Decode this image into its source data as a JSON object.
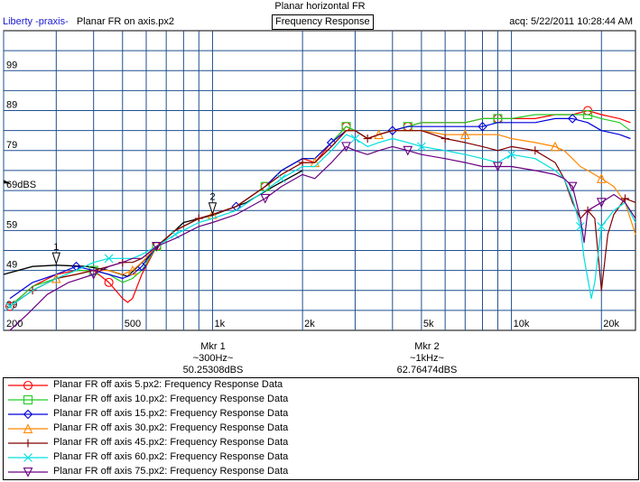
{
  "header": {
    "title": "Planar horizontal FR",
    "app_name": "Liberty -praxis-",
    "document": "Planar FR on axis.px2",
    "chart_title": "Frequency Response",
    "acquired": "acq: 5/22/2011 10:28:44 AM"
  },
  "markers": [
    {
      "label": "Mkr 1",
      "freq": "~300Hz~",
      "value": "50.25308dBS",
      "tag": "1"
    },
    {
      "label": "Mkr 2",
      "freq": "~1kHz~",
      "value": "62.76474dBS",
      "tag": "2"
    }
  ],
  "chart_data": {
    "type": "line",
    "title": "Frequency Response",
    "x_scale": "log",
    "xlim": [
      200,
      26000
    ],
    "ylim": [
      34,
      109
    ],
    "y_ticks": [
      39,
      49,
      59,
      69,
      79,
      89,
      99
    ],
    "y_tick_labels": [
      "39",
      "49",
      "59",
      "69dBS",
      "79",
      "89",
      "99"
    ],
    "x_ticks": [
      200,
      500,
      1000,
      2000,
      5000,
      10000,
      20000
    ],
    "x_tick_labels": [
      "200",
      "500",
      "1k",
      "2k",
      "5k",
      "10k",
      "20k"
    ],
    "grid": true,
    "markers": [
      {
        "tag": "1",
        "freq": 300,
        "level": 50.25
      },
      {
        "tag": "2",
        "freq": 1000,
        "level": 62.76
      }
    ],
    "reference_line": {
      "color": "#000000",
      "x": [
        200,
        250,
        300,
        380,
        450,
        520,
        600,
        700,
        800,
        1000,
        1300,
        1600,
        2000
      ],
      "y": [
        48,
        50,
        50.3,
        50,
        49,
        47.5,
        52,
        57,
        61,
        62.8,
        66,
        70,
        74
      ]
    },
    "series": [
      {
        "name": "Planar FR off axis 5.px2:  Frequency Response Data",
        "color": "#ff0000",
        "marker": "circle",
        "x": [
          210,
          250,
          300,
          350,
          400,
          450,
          500,
          520,
          540,
          580,
          650,
          750,
          900,
          1000,
          1200,
          1500,
          1700,
          2000,
          2200,
          2500,
          2800,
          3000,
          3300,
          3600,
          4000,
          4500,
          5000,
          6000,
          7000,
          8000,
          9000,
          10000,
          12000,
          14000,
          16000,
          18000,
          20000,
          23000,
          25000
        ],
        "y": [
          40,
          45,
          48,
          49,
          49,
          46,
          42,
          41,
          42,
          48,
          55,
          59,
          62,
          63,
          65,
          70,
          74,
          77,
          76,
          81,
          85,
          84,
          82,
          83,
          84,
          85,
          86,
          86,
          86,
          87,
          87,
          87,
          87,
          88,
          88,
          89,
          88,
          87,
          86
        ]
      },
      {
        "name": "Planar FR off axis 10.px2:  Frequency Response Data",
        "color": "#22cc22",
        "marker": "square",
        "x": [
          210,
          250,
          300,
          350,
          400,
          450,
          500,
          540,
          580,
          650,
          750,
          900,
          1000,
          1200,
          1500,
          1700,
          2000,
          2200,
          2500,
          2800,
          3000,
          3300,
          3600,
          4000,
          4500,
          5000,
          6000,
          7000,
          8000,
          9000,
          10000,
          12000,
          14000,
          16000,
          18000,
          20000,
          23000,
          25000
        ],
        "y": [
          40,
          45,
          47,
          49,
          49,
          48,
          46,
          47,
          49,
          55,
          59,
          62,
          63,
          65,
          70,
          74,
          77,
          77,
          81,
          85,
          84,
          82,
          83,
          84,
          85,
          86,
          86,
          86,
          87,
          87,
          87,
          88,
          88,
          88,
          88,
          87,
          86,
          84
        ]
      },
      {
        "name": "Planar FR off axis 15.px2:  Frequency Response Data",
        "color": "#0000dd",
        "marker": "diamond",
        "x": [
          210,
          250,
          300,
          350,
          400,
          450,
          500,
          540,
          580,
          650,
          750,
          900,
          1000,
          1200,
          1500,
          1700,
          2000,
          2200,
          2500,
          2800,
          3000,
          3300,
          3600,
          4000,
          4500,
          5000,
          6000,
          7000,
          8000,
          9000,
          10000,
          12000,
          14000,
          16000,
          18000,
          20000,
          23000,
          25000
        ],
        "y": [
          42,
          46,
          48,
          50,
          49,
          48,
          47,
          48,
          50,
          55,
          59,
          62,
          63,
          65,
          70,
          74,
          77,
          77,
          81,
          84,
          84,
          82,
          83,
          84,
          85,
          85,
          85,
          85,
          85,
          86,
          86,
          86,
          87,
          87,
          86,
          84,
          83,
          82
        ]
      },
      {
        "name": "Planar FR off axis 30.px2:  Frequency Response Data",
        "color": "#ff8800",
        "marker": "triangle",
        "x": [
          210,
          250,
          300,
          350,
          400,
          450,
          500,
          540,
          580,
          650,
          750,
          900,
          1000,
          1200,
          1500,
          1700,
          2000,
          2200,
          2500,
          2800,
          3000,
          3300,
          3600,
          4000,
          4500,
          5000,
          6000,
          7000,
          8000,
          9000,
          10000,
          12000,
          14000,
          15000,
          16000,
          17000,
          18000,
          20000,
          22000,
          24000,
          26000
        ],
        "y": [
          40,
          44,
          47,
          48,
          49,
          49,
          48,
          49,
          51,
          55,
          59,
          62,
          63,
          65,
          70,
          73,
          76,
          76,
          80,
          84,
          84,
          82,
          83,
          84,
          84,
          84,
          83,
          83,
          83,
          83,
          82,
          81,
          80,
          79,
          77,
          75,
          74,
          72,
          70,
          66,
          58
        ]
      },
      {
        "name": "Planar FR off axis 45.px2:  Frequency Response Data",
        "color": "#800000",
        "marker": "plus",
        "x": [
          210,
          250,
          300,
          350,
          400,
          450,
          500,
          540,
          580,
          650,
          750,
          900,
          1000,
          1200,
          1500,
          1700,
          2000,
          2200,
          2500,
          2800,
          3000,
          3300,
          3600,
          4000,
          4500,
          5000,
          6000,
          7000,
          8000,
          9000,
          10000,
          12000,
          14000,
          15000,
          16000,
          17000,
          18000,
          19000,
          20000,
          21000,
          22000,
          24000,
          26000
        ],
        "y": [
          40,
          44,
          47,
          48,
          49,
          50,
          51,
          51,
          52,
          55,
          59,
          62,
          63,
          65,
          70,
          73,
          76,
          76,
          80,
          84,
          84,
          82,
          83,
          84,
          84,
          84,
          82,
          81,
          80,
          79,
          80,
          79,
          76,
          72,
          66,
          62,
          64,
          62,
          44,
          58,
          63,
          67,
          66
        ]
      },
      {
        "name": "Planar FR off axis 60.px2:  Frequency Response Data",
        "color": "#00e0e0",
        "marker": "x",
        "x": [
          210,
          250,
          300,
          350,
          400,
          450,
          500,
          540,
          580,
          650,
          750,
          900,
          1000,
          1200,
          1500,
          1700,
          2000,
          2200,
          2500,
          2800,
          3000,
          3300,
          3600,
          4000,
          4500,
          5000,
          6000,
          7000,
          8000,
          9000,
          10000,
          12000,
          14000,
          15000,
          16000,
          17000,
          17500,
          18000,
          18500,
          19000,
          20000,
          22000,
          24000,
          26000
        ],
        "y": [
          40,
          44,
          47,
          49,
          51,
          52,
          52,
          52,
          53,
          55,
          58,
          61,
          62,
          64,
          69,
          72,
          75,
          75,
          79,
          83,
          82,
          80,
          81,
          82,
          81,
          80,
          79,
          78,
          77,
          76,
          78,
          77,
          74,
          72,
          67,
          60,
          52,
          47,
          42,
          46,
          60,
          64,
          66,
          61
        ]
      },
      {
        "name": "Planar FR off axis 75.px2:  Frequency Response Data",
        "color": "#6a0080",
        "marker": "triangle-down",
        "x": [
          210,
          240,
          280,
          330,
          400,
          450,
          500,
          540,
          580,
          650,
          750,
          900,
          1000,
          1200,
          1500,
          1700,
          2000,
          2200,
          2500,
          2800,
          3000,
          3300,
          3600,
          4000,
          4500,
          5000,
          6000,
          7000,
          8000,
          9000,
          10000,
          12000,
          14000,
          15000,
          16000,
          16500,
          17000,
          17500,
          18000,
          20000,
          22000,
          24000,
          26000
        ],
        "y": [
          34,
          38,
          43,
          46,
          48,
          50,
          51,
          52,
          52,
          55,
          57,
          60,
          61,
          63,
          67,
          70,
          73,
          72,
          76,
          80,
          79,
          78,
          79,
          80,
          79,
          78,
          77,
          76,
          75,
          75,
          75,
          74,
          73,
          72,
          70,
          66,
          62,
          56,
          64,
          66,
          68,
          66,
          62
        ]
      }
    ]
  },
  "colors": {
    "grid": "#1f4f8f",
    "plot_background": "#ffffff"
  }
}
